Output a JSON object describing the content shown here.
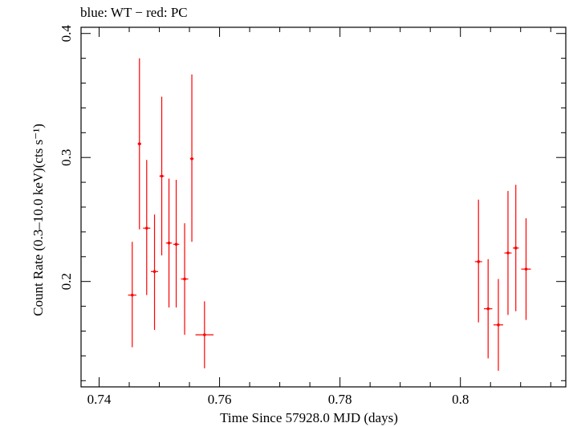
{
  "chart_data": {
    "type": "scatter",
    "title": "blue: WT − red: PC",
    "xlabel": "Time Since 57928.0 MJD (days)",
    "ylabel": "Count Rate (0.3–10.0 keV)(cts s⁻¹)",
    "xlim": [
      0.737,
      0.8175
    ],
    "ylim": [
      0.115,
      0.405
    ],
    "xticks": [
      0.74,
      0.76,
      0.78,
      0.8
    ],
    "xtick_labels": [
      "0.74",
      "0.76",
      "0.78",
      "0.8"
    ],
    "yticks": [
      0.2,
      0.3,
      0.4
    ],
    "ytick_labels": [
      "0.2",
      "0.3",
      "0.4"
    ],
    "grid": false,
    "series": [
      {
        "name": "PC",
        "color": "#ff0000",
        "points": [
          {
            "x": 0.7455,
            "y": 0.189,
            "xerr": 0.0007,
            "yerr_low": 0.147,
            "yerr_high": 0.232
          },
          {
            "x": 0.7467,
            "y": 0.311,
            "xerr": 0.0003,
            "yerr_low": 0.242,
            "yerr_high": 0.38
          },
          {
            "x": 0.7479,
            "y": 0.243,
            "xerr": 0.0006,
            "yerr_low": 0.189,
            "yerr_high": 0.298
          },
          {
            "x": 0.7492,
            "y": 0.208,
            "xerr": 0.0006,
            "yerr_low": 0.161,
            "yerr_high": 0.254
          },
          {
            "x": 0.7504,
            "y": 0.285,
            "xerr": 0.0004,
            "yerr_low": 0.221,
            "yerr_high": 0.349
          },
          {
            "x": 0.7516,
            "y": 0.231,
            "xerr": 0.0005,
            "yerr_low": 0.179,
            "yerr_high": 0.283
          },
          {
            "x": 0.7528,
            "y": 0.23,
            "xerr": 0.0005,
            "yerr_low": 0.179,
            "yerr_high": 0.282
          },
          {
            "x": 0.7542,
            "y": 0.202,
            "xerr": 0.0006,
            "yerr_low": 0.157,
            "yerr_high": 0.247
          },
          {
            "x": 0.7554,
            "y": 0.299,
            "xerr": 0.0003,
            "yerr_low": 0.232,
            "yerr_high": 0.367
          },
          {
            "x": 0.7575,
            "y": 0.157,
            "xerr": 0.0015,
            "yerr_low": 0.13,
            "yerr_high": 0.184
          },
          {
            "x": 0.803,
            "y": 0.216,
            "xerr": 0.0006,
            "yerr_low": 0.167,
            "yerr_high": 0.266
          },
          {
            "x": 0.8046,
            "y": 0.178,
            "xerr": 0.0007,
            "yerr_low": 0.138,
            "yerr_high": 0.218
          },
          {
            "x": 0.8063,
            "y": 0.165,
            "xerr": 0.0008,
            "yerr_low": 0.128,
            "yerr_high": 0.202
          },
          {
            "x": 0.8079,
            "y": 0.223,
            "xerr": 0.0006,
            "yerr_low": 0.173,
            "yerr_high": 0.273
          },
          {
            "x": 0.8092,
            "y": 0.227,
            "xerr": 0.0005,
            "yerr_low": 0.176,
            "yerr_high": 0.278
          },
          {
            "x": 0.8109,
            "y": 0.21,
            "xerr": 0.0008,
            "yerr_low": 0.169,
            "yerr_high": 0.251
          }
        ]
      }
    ]
  }
}
